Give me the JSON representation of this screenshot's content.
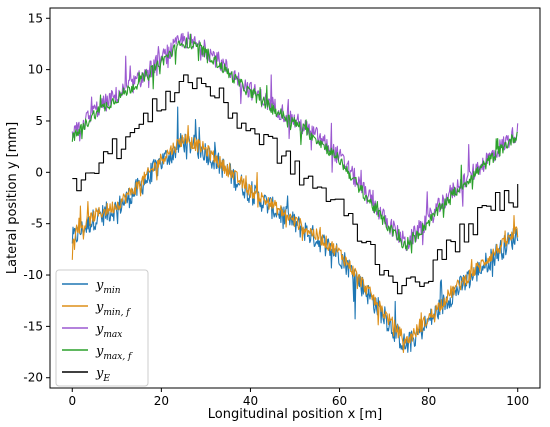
{
  "chart_data": {
    "type": "line",
    "title": "",
    "xlabel": "Longitudinal position x [m]",
    "ylabel": "Lateral position y [mm]",
    "xlim": [
      -5,
      105
    ],
    "ylim": [
      -21,
      16
    ],
    "xticks": [
      0,
      20,
      40,
      60,
      80,
      100
    ],
    "yticks": [
      -20,
      -15,
      -10,
      -5,
      0,
      5,
      10,
      15
    ],
    "grid": false,
    "legend_position": "lower-left",
    "series": [
      {
        "name": "y_min",
        "label_main": "y",
        "label_sub": "min",
        "color": "#1f77b4",
        "x": [
          0,
          5,
          10,
          15,
          20,
          25,
          30,
          35,
          40,
          45,
          50,
          55,
          60,
          65,
          70,
          75,
          80,
          85,
          90,
          95,
          100
        ],
        "y": [
          -6.5,
          -4.5,
          -3.5,
          -1.5,
          1.0,
          3.0,
          2.0,
          0.0,
          -2.0,
          -3.5,
          -5.0,
          -6.5,
          -8.0,
          -11.0,
          -14.0,
          -17.0,
          -14.5,
          -12.0,
          -10.0,
          -8.0,
          -6.0
        ]
      },
      {
        "name": "y_min,f",
        "label_main": "y",
        "label_sub": "min, f",
        "color": "#dd8f18",
        "x": [
          0,
          5,
          10,
          15,
          20,
          25,
          30,
          35,
          40,
          45,
          50,
          55,
          60,
          65,
          70,
          75,
          80,
          85,
          90,
          95,
          100
        ],
        "y": [
          -6.2,
          -4.2,
          -3.2,
          -1.2,
          1.3,
          3.3,
          2.2,
          0.2,
          -1.8,
          -3.2,
          -4.8,
          -6.2,
          -7.8,
          -10.7,
          -13.7,
          -16.5,
          -14.2,
          -11.7,
          -9.7,
          -7.7,
          -5.8
        ]
      },
      {
        "name": "y_max",
        "label_main": "y",
        "label_sub": "max",
        "color": "#9b59d0",
        "x": [
          0,
          5,
          10,
          15,
          20,
          25,
          30,
          35,
          40,
          45,
          50,
          55,
          60,
          65,
          70,
          75,
          80,
          85,
          90,
          95,
          100
        ],
        "y": [
          3.5,
          6.0,
          7.5,
          9.0,
          11.0,
          13.0,
          12.0,
          10.0,
          8.0,
          6.5,
          5.0,
          3.5,
          1.5,
          -1.5,
          -4.5,
          -7.0,
          -4.5,
          -2.0,
          0.0,
          2.0,
          4.0
        ]
      },
      {
        "name": "y_max,f",
        "label_main": "y",
        "label_sub": "max, f",
        "color": "#2ca02c",
        "x": [
          0,
          5,
          10,
          15,
          20,
          25,
          30,
          35,
          40,
          45,
          50,
          55,
          60,
          65,
          70,
          75,
          80,
          85,
          90,
          95,
          100
        ],
        "y": [
          3.2,
          5.7,
          7.2,
          8.8,
          10.8,
          12.7,
          11.7,
          9.7,
          7.7,
          6.2,
          4.8,
          3.2,
          1.2,
          -1.8,
          -4.8,
          -7.3,
          -4.8,
          -2.3,
          -0.3,
          1.7,
          3.7
        ]
      },
      {
        "name": "y_E",
        "label_main": "y",
        "label_sub": "E",
        "color": "#000000",
        "x": [
          0,
          5,
          10,
          15,
          20,
          25,
          30,
          35,
          40,
          45,
          50,
          55,
          60,
          65,
          70,
          75,
          80,
          85,
          90,
          95,
          100
        ],
        "y": [
          -1.0,
          1.0,
          2.5,
          4.5,
          7.0,
          9.0,
          8.5,
          6.0,
          4.0,
          2.5,
          0.0,
          -1.5,
          -3.5,
          -6.5,
          -9.5,
          -11.5,
          -9.5,
          -7.0,
          -5.0,
          -3.0,
          -2.0
        ]
      }
    ]
  }
}
